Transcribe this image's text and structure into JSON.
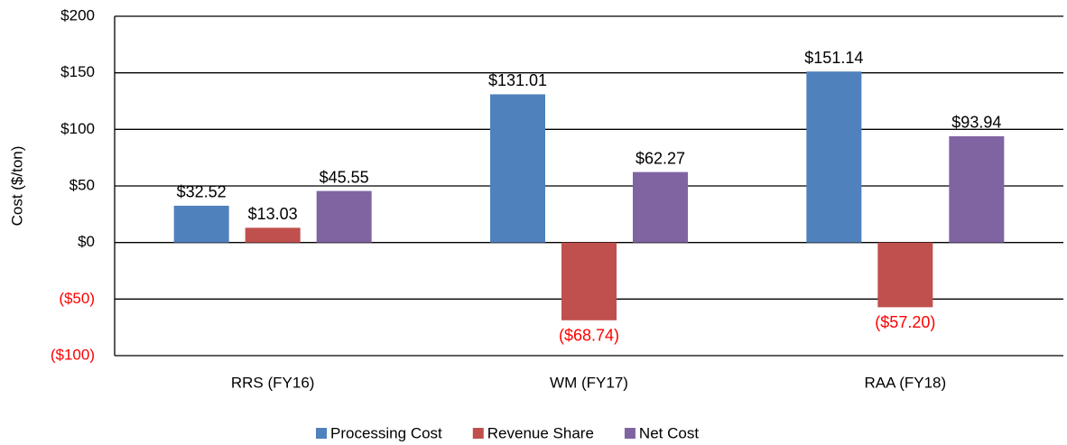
{
  "chart_data": {
    "type": "bar",
    "y_label": "Cost ($/ton)",
    "categories": [
      "RRS (FY16)",
      "WM (FY17)",
      "RAA (FY18)"
    ],
    "series": [
      {
        "name": "Processing Cost",
        "color": "#4f81bd",
        "values": [
          32.52,
          131.01,
          151.14
        ],
        "value_labels": [
          "$32.52",
          "$131.01",
          "$151.14"
        ]
      },
      {
        "name": "Revenue Share",
        "color": "#c0504d",
        "values": [
          13.03,
          -68.74,
          -57.2
        ],
        "value_labels": [
          "$13.03",
          "($68.74)",
          "($57.20)"
        ]
      },
      {
        "name": "Net Cost",
        "color": "#8064a2",
        "values": [
          45.55,
          62.27,
          93.94
        ],
        "value_labels": [
          "$45.55",
          "$62.27",
          "$93.94"
        ]
      }
    ],
    "ylim": [
      -100,
      200
    ],
    "yticks": [
      {
        "value": -100,
        "label": "($100)"
      },
      {
        "value": -50,
        "label": "($50)"
      },
      {
        "value": 0,
        "label": "$0"
      },
      {
        "value": 50,
        "label": "$50"
      },
      {
        "value": 100,
        "label": "$100"
      },
      {
        "value": 150,
        "label": "$150"
      },
      {
        "value": 200,
        "label": "$200"
      }
    ],
    "negative_label_color": "#ff0000",
    "grid": true,
    "legend": "bottom"
  }
}
